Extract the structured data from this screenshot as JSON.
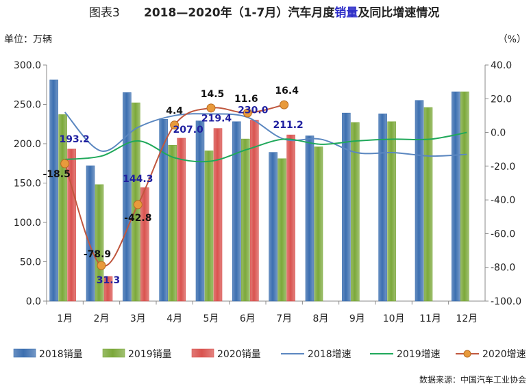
{
  "page": {
    "title_prefix": "图表3",
    "title_main_1": "2018—2020年（1-7月）汽车月度",
    "title_highlight": "销量",
    "title_main_2": "及同比增速情况",
    "left_unit": "单位：万辆",
    "right_unit": "（%）",
    "source": "数据来源：中国汽车工业协会",
    "highlight_color": "#2E2EC8"
  },
  "chart_data": {
    "type": "bar",
    "categories": [
      "1月",
      "2月",
      "3月",
      "4月",
      "5月",
      "6月",
      "7月",
      "8月",
      "9月",
      "10月",
      "11月",
      "12月"
    ],
    "y_left": {
      "range": [
        0,
        300
      ],
      "ticks": [
        "0.0",
        "50.0",
        "100.0",
        "150.0",
        "200.0",
        "250.0",
        "300.0"
      ]
    },
    "y_right": {
      "range": [
        -100,
        40
      ],
      "ticks": [
        "-100.0",
        "-80.0",
        "-60.0",
        "-40.0",
        "-20.0",
        "0.0",
        "20.0",
        "40.0"
      ]
    },
    "bar_series": [
      {
        "name": "2018销量",
        "color": "#3C6FB0",
        "values": [
          281,
          172,
          265,
          231,
          229,
          228,
          189,
          210,
          239,
          238,
          255,
          266
        ]
      },
      {
        "name": "2019销量",
        "color": "#7BA83A",
        "values": [
          237,
          148,
          252,
          198,
          191,
          206,
          181,
          196,
          227,
          228,
          246,
          266
        ]
      },
      {
        "name": "2020销量",
        "color": "#D9534F",
        "values": [
          193.2,
          31.3,
          144.3,
          207.0,
          219.4,
          230.0,
          211.2
        ]
      }
    ],
    "bar_labels": [
      "193.2",
      "31.3",
      "144.3",
      "207.0",
      "219.4",
      "230.0",
      "211.2"
    ],
    "bar_label_color": "#2020A0",
    "line_series": [
      {
        "name": "2018增速",
        "color": "#5B87C0",
        "values": [
          12,
          -11,
          3,
          10,
          11,
          9,
          -4,
          -4,
          -12,
          -12,
          -14,
          -13
        ]
      },
      {
        "name": "2019增速",
        "color": "#1FA85A",
        "values": [
          -16,
          -14,
          -5,
          -15,
          -17,
          -10,
          -4,
          -7,
          -5,
          -4,
          -4,
          0
        ]
      },
      {
        "name": "2020增速",
        "color": "#C0573E",
        "marker_color": "#E89A3C",
        "values": [
          -18.5,
          -78.9,
          -42.8,
          4.4,
          14.5,
          11.6,
          16.4
        ]
      }
    ],
    "line_labels": [
      "-18.5",
      "-78.9",
      "-42.8",
      "4.4",
      "14.5",
      "11.6",
      "16.4"
    ],
    "legend": [
      "2018销量",
      "2019销量",
      "2020销量",
      "2018增速",
      "2019增速",
      "2020增速"
    ],
    "legend_position": "bottom",
    "grid": false
  }
}
